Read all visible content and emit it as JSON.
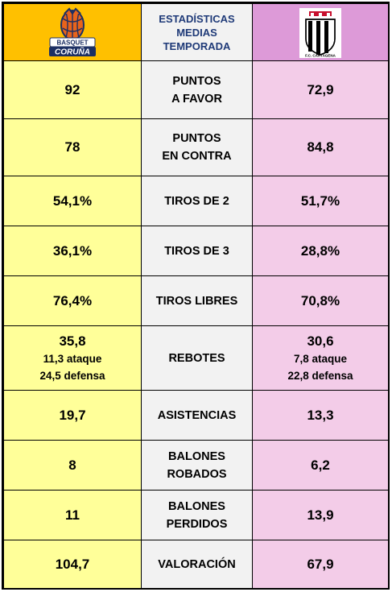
{
  "header": {
    "title_lines": [
      "ESTADÍSTICAS",
      "MEDIAS",
      "TEMPORADA"
    ],
    "home_logo": {
      "icon": "basquet-coruna-logo",
      "text_lines": [
        "BASQUET",
        "CORUÑA"
      ]
    },
    "away_logo": {
      "icon": "fc-cartagena-crest",
      "text": "F.C. CARTAGENA"
    }
  },
  "colors": {
    "home_header": "#ffc000",
    "home_cells": "#ffff99",
    "away_header": "#dd9ad8",
    "away_cells": "#f3cce8",
    "label_cells": "#f2f2f2",
    "title_text": "#1f3a78"
  },
  "rows": [
    {
      "home": "92",
      "label_lines": [
        "PUNTOS",
        "A FAVOR"
      ],
      "away": "72,9"
    },
    {
      "home": "78",
      "label_lines": [
        "PUNTOS",
        "EN CONTRA"
      ],
      "away": "84,8"
    },
    {
      "home": "54,1%",
      "label_lines": [
        "TIROS DE 2"
      ],
      "away": "51,7%"
    },
    {
      "home": "36,1%",
      "label_lines": [
        "TIROS DE 3"
      ],
      "away": "28,8%"
    },
    {
      "home": "76,4%",
      "label_lines": [
        "TIROS LIBRES"
      ],
      "away": "70,8%"
    },
    {
      "home": "35,8",
      "home_sub": [
        "11,3 ataque",
        "24,5 defensa"
      ],
      "label_lines": [
        "REBOTES"
      ],
      "away": "30,6",
      "away_sub": [
        "7,8 ataque",
        "22,8 defensa"
      ]
    },
    {
      "home": "19,7",
      "label_lines": [
        "ASISTENCIAS"
      ],
      "away": "13,3"
    },
    {
      "home": "8",
      "label_lines": [
        "BALONES",
        "ROBADOS"
      ],
      "away": "6,2"
    },
    {
      "home": "11",
      "label_lines": [
        "BALONES",
        "PERDIDOS"
      ],
      "away": "13,9"
    },
    {
      "home": "104,7",
      "label_lines": [
        "VALORACIÓN"
      ],
      "away": "67,9"
    }
  ]
}
